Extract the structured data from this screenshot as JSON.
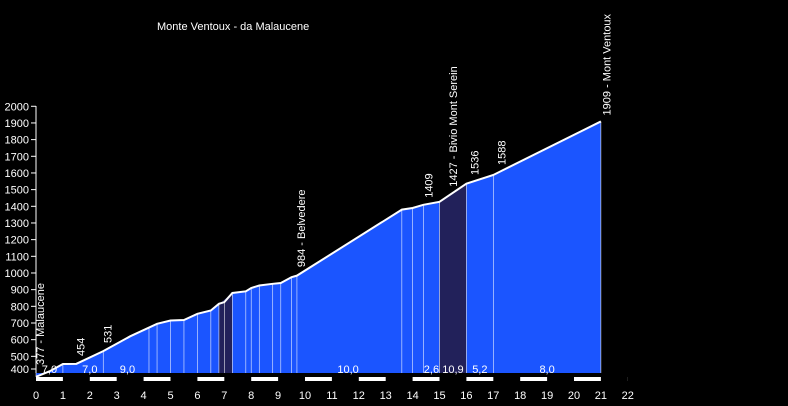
{
  "chart_data": {
    "type": "area",
    "title": "Monte Ventoux - da Malaucene",
    "xlabel": "",
    "ylabel": "",
    "xlim": [
      0,
      22
    ],
    "ylim": [
      400,
      2000
    ],
    "grid": false,
    "x_ticks": [
      0,
      1,
      2,
      3,
      4,
      5,
      6,
      7,
      8,
      9,
      10,
      11,
      12,
      13,
      14,
      15,
      16,
      17,
      18,
      19,
      20,
      21,
      22
    ],
    "y_ticks": [
      400,
      500,
      600,
      700,
      800,
      900,
      1000,
      1100,
      1200,
      1300,
      1400,
      1500,
      1600,
      1700,
      1800,
      1900,
      2000
    ],
    "profile": {
      "x": [
        0,
        0.5,
        1.0,
        1.5,
        2.5,
        3.5,
        4.5,
        5.0,
        5.5,
        6.0,
        6.5,
        6.8,
        7.0,
        7.3,
        7.8,
        8.0,
        8.3,
        8.8,
        9.1,
        9.5,
        9.7,
        13.6,
        14.0,
        14.4,
        15.0,
        16.0,
        17.0,
        21.0
      ],
      "y": [
        377,
        410,
        454,
        455,
        531,
        620,
        695,
        715,
        718,
        755,
        775,
        815,
        825,
        880,
        890,
        910,
        925,
        935,
        940,
        975,
        984,
        1380,
        1390,
        1409,
        1427,
        1536,
        1588,
        1909
      ]
    },
    "shaded_segment": {
      "x": [
        15.0,
        16.0
      ],
      "color": "#22215a"
    },
    "area_color": "#1b55ff",
    "line_color": "#ffffff",
    "segment_dividers": [
      0,
      0.5,
      1.0,
      2.5,
      4.2,
      4.5,
      5.0,
      5.5,
      6.0,
      6.5,
      6.8,
      7.0,
      7.3,
      7.8,
      8.0,
      8.3,
      8.8,
      9.1,
      9.5,
      9.7,
      13.6,
      14.0,
      14.4,
      15.0,
      16.0,
      17.0,
      21.0
    ],
    "point_labels": [
      {
        "x": 0.15,
        "label": "377 - Malaucene"
      },
      {
        "x": 1.65,
        "label": "454"
      },
      {
        "x": 2.65,
        "label": "531"
      },
      {
        "x": 9.85,
        "label": "984 - Belvedere"
      },
      {
        "x": 14.6,
        "label": "1409"
      },
      {
        "x": 15.5,
        "label": "1427 - Bivio Mont Serein"
      },
      {
        "x": 16.3,
        "label": "1536"
      },
      {
        "x": 17.3,
        "label": "1588"
      },
      {
        "x": 21.2,
        "label": "1909 - Mont Ventoux"
      }
    ],
    "gradient_labels": [
      {
        "x": 0.5,
        "label": "7,0"
      },
      {
        "x": 2.0,
        "label": "7,0"
      },
      {
        "x": 3.4,
        "label": "9,0"
      },
      {
        "x": 11.6,
        "label": "10,0"
      },
      {
        "x": 14.7,
        "label": "2,6"
      },
      {
        "x": 15.5,
        "label": "10,9"
      },
      {
        "x": 16.5,
        "label": "5,2"
      },
      {
        "x": 19.0,
        "label": "8,0"
      }
    ],
    "scale_bar": {
      "from": 0,
      "to": 21
    }
  }
}
